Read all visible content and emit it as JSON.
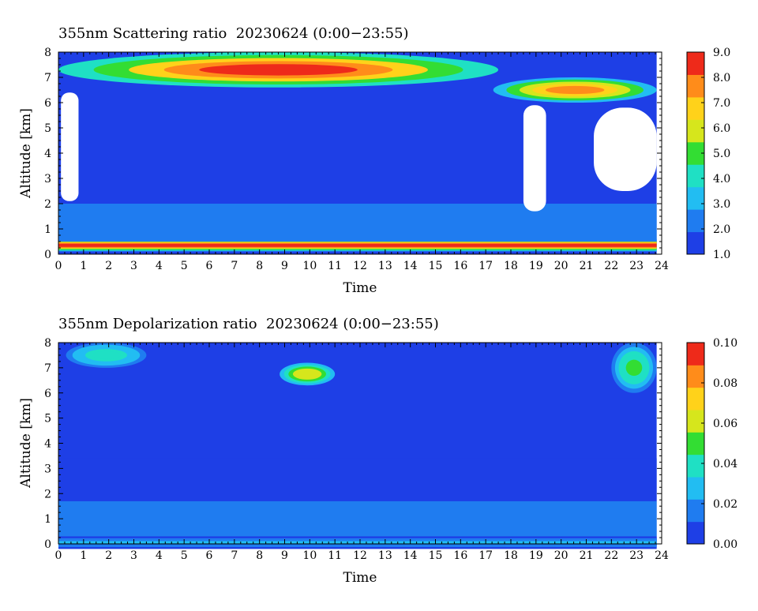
{
  "chart_data": [
    {
      "type": "heatmap",
      "title": "355nm Scattering ratio  20230624 (0:00−23:55)",
      "xlabel": "Time",
      "ylabel": "Altitude [km]",
      "xlim": [
        0,
        24
      ],
      "ylim": [
        0,
        8
      ],
      "x_ticks": [
        "0",
        "1",
        "2",
        "3",
        "4",
        "5",
        "6",
        "7",
        "8",
        "9",
        "10",
        "11",
        "12",
        "13",
        "14",
        "15",
        "16",
        "17",
        "18",
        "19",
        "20",
        "21",
        "22",
        "23",
        "24"
      ],
      "y_ticks": [
        "0",
        "1",
        "2",
        "3",
        "4",
        "5",
        "6",
        "7",
        "8"
      ],
      "colorbar": {
        "range": [
          1.0,
          9.0
        ],
        "ticks": [
          "1.0",
          "2.0",
          "3.0",
          "4.0",
          "5.0",
          "6.0",
          "7.0",
          "8.0",
          "9.0"
        ],
        "colors": [
          "#1e3fe6",
          "#1f7cf0",
          "#22bdf2",
          "#1fe0c4",
          "#33dd33",
          "#d6e61c",
          "#ffd21a",
          "#ff8c1a",
          "#ee2a1a"
        ]
      },
      "background_level": 1.3,
      "features": [
        {
          "kind": "boundary-layer-top",
          "time_range": [
            0,
            24
          ],
          "altitude_km": 0.35,
          "peak_value": 9.0
        },
        {
          "kind": "low-layer",
          "time_range": [
            0,
            24
          ],
          "altitude_range_km": [
            0.5,
            2.0
          ],
          "value": 2.0
        },
        {
          "kind": "high-cloud",
          "time_range": [
            0,
            17.5
          ],
          "altitude_range_km": [
            6.6,
            8.0
          ],
          "value": 8.5
        },
        {
          "kind": "high-cloud",
          "time_range": [
            17.3,
            23.8
          ],
          "altitude_range_km": [
            6.0,
            7.0
          ],
          "value": 7.5
        },
        {
          "kind": "no-data-gap",
          "time_range": [
            0.1,
            0.8
          ],
          "altitude_range_km": [
            2.1,
            6.4
          ]
        },
        {
          "kind": "no-data-gap",
          "time_range": [
            18.5,
            19.4
          ],
          "altitude_range_km": [
            1.7,
            5.9
          ]
        },
        {
          "kind": "no-data-gap",
          "time_range": [
            21.3,
            23.8
          ],
          "altitude_range_km": [
            2.5,
            5.8
          ]
        }
      ]
    },
    {
      "type": "heatmap",
      "title": "355nm Depolarization ratio  20230624 (0:00−23:55)",
      "xlabel": "Time",
      "ylabel": "Altitude [km]",
      "xlim": [
        0,
        24
      ],
      "ylim": [
        0,
        8
      ],
      "x_ticks": [
        "0",
        "1",
        "2",
        "3",
        "4",
        "5",
        "6",
        "7",
        "8",
        "9",
        "10",
        "11",
        "12",
        "13",
        "14",
        "15",
        "16",
        "17",
        "18",
        "19",
        "20",
        "21",
        "22",
        "23",
        "24"
      ],
      "y_ticks": [
        "0",
        "1",
        "2",
        "3",
        "4",
        "5",
        "6",
        "7",
        "8"
      ],
      "colorbar": {
        "range": [
          0.0,
          0.1
        ],
        "ticks": [
          "0.00",
          "0.02",
          "0.04",
          "0.06",
          "0.08",
          "0.10"
        ],
        "colors": [
          "#1e3fe6",
          "#1f7cf0",
          "#22bdf2",
          "#1fe0c4",
          "#33dd33",
          "#d6e61c",
          "#ffd21a",
          "#ff8c1a",
          "#ee2a1a"
        ]
      },
      "background_level": 0.003,
      "features": [
        {
          "kind": "near-surface",
          "time_range": [
            0,
            24
          ],
          "altitude_km": 0.05,
          "value": 0.025
        },
        {
          "kind": "aerosol-layer",
          "time_range": [
            0,
            24
          ],
          "altitude_range_km": [
            0.3,
            1.7
          ],
          "value": 0.014
        },
        {
          "kind": "aerosol-layer",
          "time_range": [
            0,
            24
          ],
          "altitude_range_km": [
            1.7,
            3.4
          ],
          "value": 0.01
        },
        {
          "kind": "high-cloud",
          "time_range": [
            0.3,
            3.5
          ],
          "altitude_range_km": [
            7.0,
            8.0
          ],
          "value": 0.04
        },
        {
          "kind": "high-cloud",
          "time_range": [
            8.8,
            11
          ],
          "altitude_range_km": [
            6.3,
            7.2
          ],
          "value": 0.065
        },
        {
          "kind": "high-cloud",
          "time_range": [
            22,
            23.8
          ],
          "altitude_range_km": [
            6.0,
            8.0
          ],
          "value": 0.045
        }
      ]
    }
  ]
}
